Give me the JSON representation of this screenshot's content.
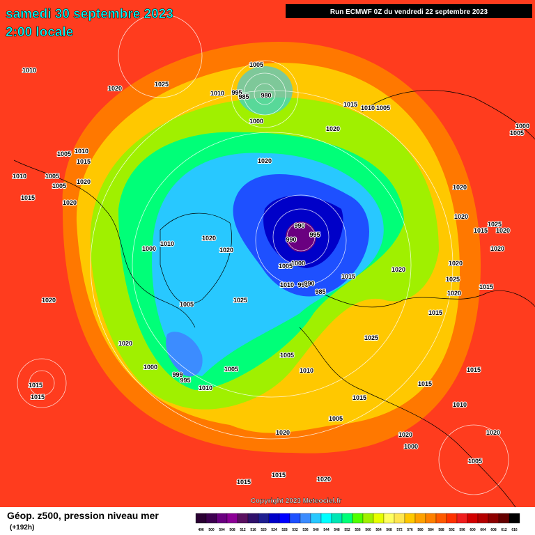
{
  "header": {
    "date": "samedi 30 septembre 2023",
    "time": "2:00 locale",
    "run": "Run ECMWF 0Z du vendredi 22 septembre 2023"
  },
  "footer": {
    "title": "Géop. z500, pression niveau mer",
    "lead": "(+192h)",
    "copyright": "Copyright 2023 Meteociel.fr"
  },
  "isobar_labels": [
    "1010",
    "1020",
    "1025",
    "1005",
    "1010",
    "995",
    "985",
    "980",
    "1000",
    "1015",
    "1010",
    "1005",
    "1020",
    "1000",
    "1005",
    "1005",
    "1010",
    "1015",
    "1010",
    "1005",
    "1005",
    "1020",
    "1015",
    "1020",
    "1020",
    "1000",
    "1010",
    "1020",
    "1020",
    "990",
    "995",
    "990",
    "1000",
    "1005",
    "1010",
    "995",
    "990",
    "985",
    "1020",
    "1015",
    "1025",
    "1020",
    "1020",
    "1015",
    "1025",
    "1020",
    "1020",
    "1020",
    "1025",
    "1015",
    "1020",
    "1015",
    "1025",
    "1020",
    "1005",
    "1000",
    "999",
    "995",
    "1010",
    "1005",
    "1005",
    "1010",
    "1015",
    "1015",
    "1020",
    "1015",
    "1005",
    "1015",
    "1015",
    "1010",
    "1020",
    "1020",
    "1020",
    "1015",
    "1015",
    "1020",
    "1000",
    "1005"
  ],
  "colorbar": {
    "values": [
      496,
      500,
      504,
      508,
      512,
      516,
      520,
      524,
      528,
      532,
      536,
      540,
      544,
      548,
      552,
      556,
      560,
      564,
      568,
      572,
      576,
      580,
      584,
      588,
      592,
      596,
      600,
      604,
      608,
      612,
      616
    ],
    "colors": [
      "#2a0033",
      "#3d0050",
      "#6a0080",
      "#8c0096",
      "#5a1060",
      "#30106a",
      "#1e1e90",
      "#0000c8",
      "#0000ff",
      "#1e50ff",
      "#3c8cff",
      "#28c8ff",
      "#00ffff",
      "#00e6b4",
      "#00ff78",
      "#50ff00",
      "#a0f000",
      "#e6ff00",
      "#ffff60",
      "#ffe650",
      "#ffc800",
      "#ffa000",
      "#ff8000",
      "#ff5a00",
      "#ff3200",
      "#f01e1e",
      "#d20000",
      "#b40000",
      "#8c0000",
      "#640000",
      "#000000"
    ]
  }
}
